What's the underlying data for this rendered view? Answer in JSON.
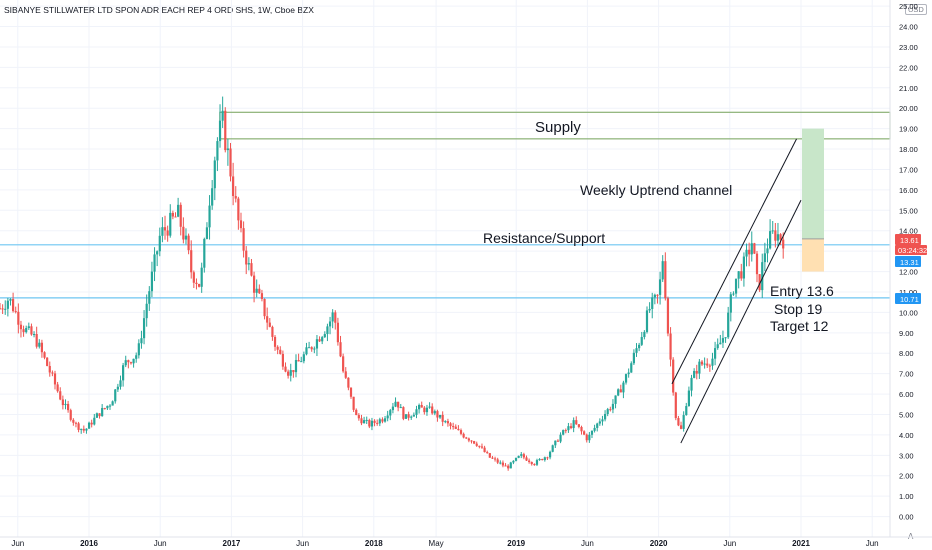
{
  "header": {
    "symbol_line": "SIBANYE STILLWATER LTD SPON ADR EACH REP 4 ORD SHS, 1W, Cboe BZX",
    "currency": "USD",
    "auto_scale": "A"
  },
  "colors": {
    "up": "#26a69a",
    "down": "#ef5350",
    "price_tag": "#ef5350",
    "price_tag_dark": "#b71c1c",
    "level_tag": "#2196f3",
    "level_line": "#6ec6f2",
    "supply_line": "#8bb174",
    "target_zone": "#c8e6c9",
    "stop_zone": "#ffe0b2",
    "channel": "#131722"
  },
  "price_tags": {
    "last_price": "13.61",
    "countdown": "03:24:32",
    "upper_level": "13.31",
    "lower_level": "10.71"
  },
  "annotations": {
    "supply": "Supply",
    "channel": "Weekly Uptrend  channel",
    "resistance": "Resistance/Support",
    "entry": "Entry 13.6",
    "stop": "Stop  19",
    "target": "Target  12"
  },
  "chart_data": {
    "type": "candlestick",
    "timeframe": "1W",
    "ylim": [
      -1,
      25.3
    ],
    "y_ticks": [
      "0.00",
      "1.00",
      "2.00",
      "3.00",
      "4.00",
      "5.00",
      "6.00",
      "7.00",
      "8.00",
      "9.00",
      "10.00",
      "11.00",
      "12.00",
      "13.00",
      "14.00",
      "15.00",
      "16.00",
      "17.00",
      "18.00",
      "19.00",
      "20.00",
      "21.00",
      "22.00",
      "23.00",
      "24.00",
      "25.00"
    ],
    "x_ticks": [
      {
        "label": "Jun",
        "frac": 0.02,
        "bold": false
      },
      {
        "label": "2016",
        "frac": 0.1,
        "bold": true
      },
      {
        "label": "Jun",
        "frac": 0.18,
        "bold": false
      },
      {
        "label": "2017",
        "frac": 0.26,
        "bold": true
      },
      {
        "label": "Jun",
        "frac": 0.34,
        "bold": false
      },
      {
        "label": "2018",
        "frac": 0.42,
        "bold": true
      },
      {
        "label": "May",
        "frac": 0.49,
        "bold": false
      },
      {
        "label": "2019",
        "frac": 0.58,
        "bold": true
      },
      {
        "label": "Jun",
        "frac": 0.66,
        "bold": false
      },
      {
        "label": "2020",
        "frac": 0.74,
        "bold": true
      },
      {
        "label": "Jun",
        "frac": 0.82,
        "bold": false
      },
      {
        "label": "2021",
        "frac": 0.9,
        "bold": true
      },
      {
        "label": "Jun",
        "frac": 0.98,
        "bold": false
      }
    ],
    "price_path": [
      [
        0,
        10.2
      ],
      [
        0.01,
        10.7
      ],
      [
        0.025,
        9.3
      ],
      [
        0.04,
        8.7
      ],
      [
        0.055,
        7.2
      ],
      [
        0.07,
        5.6
      ],
      [
        0.085,
        4.5
      ],
      [
        0.095,
        4.2
      ],
      [
        0.11,
        5.0
      ],
      [
        0.125,
        5.6
      ],
      [
        0.14,
        7.5
      ],
      [
        0.155,
        8.0
      ],
      [
        0.165,
        10.5
      ],
      [
        0.18,
        13.8
      ],
      [
        0.2,
        14.8
      ],
      [
        0.21,
        13.2
      ],
      [
        0.215,
        12.0
      ],
      [
        0.225,
        11.3
      ],
      [
        0.235,
        15.5
      ],
      [
        0.243,
        18.2
      ],
      [
        0.25,
        19.3
      ],
      [
        0.257,
        17.5
      ],
      [
        0.27,
        13.8
      ],
      [
        0.285,
        11.3
      ],
      [
        0.295,
        10.3
      ],
      [
        0.31,
        8.3
      ],
      [
        0.325,
        7.0
      ],
      [
        0.34,
        7.8
      ],
      [
        0.355,
        8.6
      ],
      [
        0.37,
        9.5
      ],
      [
        0.375,
        10.0
      ],
      [
        0.385,
        7.2
      ],
      [
        0.4,
        4.9
      ],
      [
        0.415,
        4.5
      ],
      [
        0.43,
        4.8
      ],
      [
        0.445,
        5.7
      ],
      [
        0.455,
        4.8
      ],
      [
        0.47,
        5.3
      ],
      [
        0.485,
        5.2
      ],
      [
        0.5,
        4.6
      ],
      [
        0.52,
        4.0
      ],
      [
        0.535,
        3.6
      ],
      [
        0.55,
        2.9
      ],
      [
        0.57,
        2.4
      ],
      [
        0.585,
        3.0
      ],
      [
        0.6,
        2.6
      ],
      [
        0.615,
        3.0
      ],
      [
        0.63,
        4.0
      ],
      [
        0.645,
        4.6
      ],
      [
        0.66,
        3.8
      ],
      [
        0.675,
        4.8
      ],
      [
        0.69,
        5.6
      ],
      [
        0.705,
        7.0
      ],
      [
        0.72,
        8.8
      ],
      [
        0.73,
        10.2
      ],
      [
        0.74,
        10.8
      ],
      [
        0.745,
        12.8
      ],
      [
        0.75,
        9.3
      ],
      [
        0.76,
        4.6
      ],
      [
        0.765,
        4.2
      ],
      [
        0.775,
        6.5
      ],
      [
        0.785,
        7.4
      ],
      [
        0.8,
        7.7
      ],
      [
        0.815,
        9.0
      ],
      [
        0.825,
        11.5
      ],
      [
        0.835,
        12.2
      ],
      [
        0.845,
        13.5
      ],
      [
        0.852,
        11.0
      ],
      [
        0.86,
        13.2
      ],
      [
        0.87,
        13.9
      ],
      [
        0.88,
        13.61
      ]
    ],
    "horizontal_levels": [
      13.31,
      10.71
    ],
    "supply_zone": {
      "low": 18.5,
      "high": 19.8
    },
    "channel": {
      "upper": [
        [
          0.755,
          6.5
        ],
        [
          0.895,
          18.5
        ]
      ],
      "lower": [
        [
          0.765,
          3.6
        ],
        [
          0.9,
          15.5
        ]
      ]
    },
    "position": {
      "entry": 13.6,
      "stop": 19,
      "target": 12
    }
  }
}
